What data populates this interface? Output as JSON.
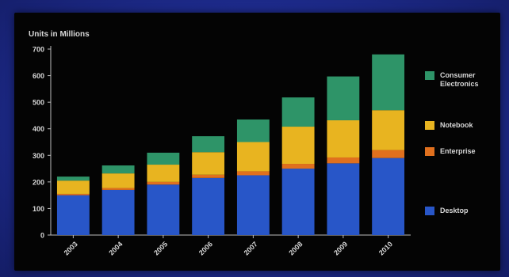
{
  "chart_data": {
    "type": "bar",
    "stacked": true,
    "ylabel": "Units in Millions",
    "ylim": [
      0,
      700
    ],
    "yticks": [
      0,
      100,
      200,
      300,
      400,
      500,
      600,
      700
    ],
    "grid": false,
    "legend_position": "right",
    "categories": [
      "2003",
      "2004",
      "2005",
      "2006",
      "2007",
      "2008",
      "2009",
      "2010"
    ],
    "series": [
      {
        "name": "Desktop",
        "color": "#2856c8",
        "values": [
          150,
          170,
          190,
          215,
          225,
          250,
          270,
          290
        ]
      },
      {
        "name": "Enterprise",
        "color": "#e0701e",
        "values": [
          5,
          7,
          10,
          12,
          15,
          18,
          22,
          30
        ]
      },
      {
        "name": "Notebook",
        "color": "#e8b420",
        "values": [
          50,
          55,
          65,
          85,
          110,
          140,
          140,
          150
        ]
      },
      {
        "name": "Consumer Electronics",
        "color": "#2e9468",
        "values": [
          15,
          30,
          45,
          60,
          85,
          110,
          165,
          210
        ]
      }
    ]
  }
}
